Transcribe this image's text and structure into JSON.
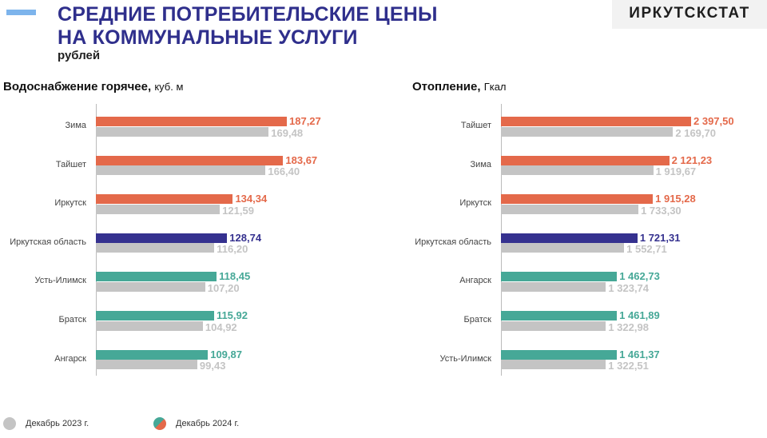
{
  "header": {
    "title_line1": "СРЕДНИЕ ПОТРЕБИТЕЛЬСКИЕ ЦЕНЫ",
    "title_line2": "НА КОММУНАЛЬНЫЕ УСЛУГИ",
    "subtitle": "рублей",
    "logo": "ИРКУТСКСТАТ"
  },
  "colors": {
    "orange": "#e4694a",
    "navy": "#35318f",
    "teal": "#46a897",
    "gray": "#c4c4c4"
  },
  "legend": {
    "items": [
      "Декабрь 2023 г.",
      "Декабрь 2024 г."
    ]
  },
  "chart_data": [
    {
      "type": "bar",
      "title": "Водоснабжение горячее,",
      "unit": "куб. м",
      "orientation": "horizontal",
      "categories": [
        "Зима",
        "Тайшет",
        "Иркутск",
        "Иркутская область",
        "Усть-Илимск",
        "Братск",
        "Ангарск"
      ],
      "series": [
        {
          "name": "Декабрь 2024 г.",
          "values": [
            187.27,
            183.67,
            134.34,
            128.74,
            118.45,
            115.92,
            109.87
          ],
          "labels": [
            "187,27",
            "183,67",
            "134,34",
            "128,74",
            "118,45",
            "115,92",
            "109,87"
          ],
          "colors": [
            "orange",
            "orange",
            "orange",
            "navy",
            "teal",
            "teal",
            "teal"
          ]
        },
        {
          "name": "Декабрь 2023 г.",
          "values": [
            169.48,
            166.4,
            121.59,
            116.2,
            107.2,
            104.92,
            99.43
          ],
          "labels": [
            "169,48",
            "166,40",
            "121,59",
            "116,20",
            "107,20",
            "104,92",
            "99,43"
          ]
        }
      ],
      "xlim": [
        0,
        187.27
      ]
    },
    {
      "type": "bar",
      "title": "Отопление,",
      "unit": "Гкал",
      "orientation": "horizontal",
      "categories": [
        "Тайшет",
        "Зима",
        "Иркутск",
        "Иркутская область",
        "Ангарск",
        "Братск",
        "Усть-Илимск"
      ],
      "series": [
        {
          "name": "Декабрь 2024 г.",
          "values": [
            2397.5,
            2121.23,
            1915.28,
            1721.31,
            1462.73,
            1461.89,
            1461.37
          ],
          "labels": [
            "2 397,50",
            "2 121,23",
            "1 915,28",
            "1 721,31",
            "1 462,73",
            "1 461,89",
            "1 461,37"
          ],
          "colors": [
            "orange",
            "orange",
            "orange",
            "navy",
            "teal",
            "teal",
            "teal"
          ]
        },
        {
          "name": "Декабрь 2023 г.",
          "values": [
            2169.7,
            1919.67,
            1733.3,
            1552.71,
            1323.74,
            1322.98,
            1322.51
          ],
          "labels": [
            "2 169,70",
            "1 919,67",
            "1 733,30",
            "1 552,71",
            "1 323,74",
            "1 322,98",
            "1 322,51"
          ]
        }
      ],
      "xlim": [
        0,
        2397.5
      ]
    }
  ]
}
